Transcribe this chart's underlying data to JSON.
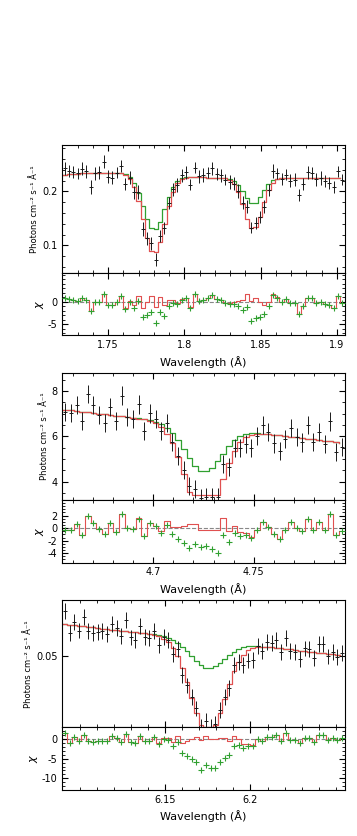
{
  "panel1": {
    "xmin": 1.72,
    "xmax": 1.905,
    "xticks": [
      1.75,
      1.8,
      1.85,
      1.9
    ],
    "xticklabels": [
      "1.75",
      "1.8",
      "1.85",
      "1.9"
    ],
    "ylim": [
      0.05,
      0.285
    ],
    "yticks": [
      0.1,
      0.2
    ],
    "yticklabels": [
      "0.1",
      "0.2"
    ],
    "ylabel": "Photons cm⁻² s⁻¹ Å⁻¹",
    "xlabel": "Wavelength (Å)",
    "chi_ylim": [
      -7.5,
      6.5
    ],
    "chi_yticks": [
      -5,
      0
    ],
    "chi_yticklabels": [
      "-5",
      "0"
    ]
  },
  "panel2": {
    "xmin": 4.655,
    "xmax": 4.795,
    "xticks": [
      4.7,
      4.75
    ],
    "xticklabels": [
      "4.7",
      "4.75"
    ],
    "ylim": [
      3.2,
      8.8
    ],
    "yticks": [
      4,
      6,
      8
    ],
    "yticklabels": [
      "4",
      "6",
      "8"
    ],
    "ylabel": "Photons cm⁻² s⁻¹ Å⁻¹",
    "xlabel": "Wavelength (Å)",
    "chi_ylim": [
      -5.5,
      4.5
    ],
    "chi_yticks": [
      -4,
      -2,
      0,
      2
    ],
    "chi_yticklabels": [
      "-4",
      "-2",
      "0",
      "2"
    ]
  },
  "panel3": {
    "xmin": 6.09,
    "xmax": 6.255,
    "xticks": [
      6.15,
      6.2
    ],
    "xticklabels": [
      "6.15",
      "6.2"
    ],
    "ylim": [
      0.005,
      0.085
    ],
    "yticks": [
      0.05
    ],
    "yticklabels": [
      "0.05"
    ],
    "ylabel": "Photons cm⁻² s⁻¹ Å⁻¹",
    "xlabel": "Wavelength (Å)",
    "chi_ylim": [
      -13,
      3
    ],
    "chi_yticks": [
      -10,
      -5,
      0
    ],
    "chi_yticklabels": [
      "-10",
      "-5",
      "0"
    ]
  },
  "colors": {
    "data": "#1a1a1a",
    "red_model": "#e05050",
    "green_model": "#30a030",
    "dashed": "#888888"
  }
}
